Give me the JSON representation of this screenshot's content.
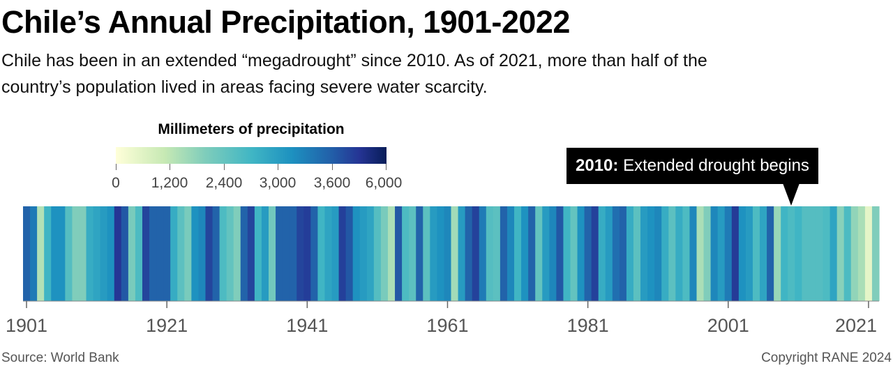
{
  "header": {
    "title": "Chile’s Annual Precipitation, 1901-2022",
    "subtitle": "Chile has been in an extended “megadrought” since 2010. As of 2021, more than half of the country’s population lived in areas facing severe water scarcity."
  },
  "legend": {
    "title": "Millimeters of precipitation",
    "scale_labels": [
      "0",
      "1,200",
      "2,400",
      "3,000",
      "3,600",
      "6,000"
    ],
    "colors": [
      "#ffffd9",
      "#c7e9b4",
      "#7fcdbb",
      "#41b6c4",
      "#1d91c0",
      "#225ea8",
      "#253494",
      "#081d58"
    ]
  },
  "annotation": {
    "year": "2010:",
    "text": "Extended drought begins"
  },
  "footer": {
    "source": "Source: World Bank",
    "copyright": "Copyright RANE 2024"
  },
  "chart_data": {
    "type": "heatmap",
    "title": "Chile’s Annual Precipitation, 1901-2022",
    "x_start": 1901,
    "x_end": 2022,
    "x_ticks": [
      "1901",
      "1921",
      "1941",
      "1961",
      "1981",
      "2001",
      "2021"
    ],
    "legend_title": "Millimeters of precipitation",
    "color_scale_breaks": [
      0,
      1200,
      2400,
      3000,
      3600,
      6000
    ],
    "values": [
      3300,
      3100,
      1100,
      2500,
      2900,
      2900,
      2300,
      1700,
      1700,
      2600,
      2700,
      2800,
      2900,
      4200,
      3400,
      1800,
      2400,
      3600,
      3300,
      3300,
      3300,
      2600,
      2200,
      1800,
      2900,
      3000,
      3600,
      3300,
      2400,
      2100,
      1700,
      3300,
      3600,
      2500,
      2800,
      1900,
      3300,
      3300,
      3300,
      3600,
      3900,
      3300,
      2500,
      2700,
      2800,
      3800,
      3400,
      2900,
      2800,
      2700,
      2300,
      1800,
      1200,
      3400,
      2400,
      2200,
      3300,
      2200,
      2800,
      2900,
      3000,
      1300,
      2800,
      3300,
      3700,
      3100,
      2300,
      2200,
      3300,
      3000,
      2500,
      2900,
      3300,
      2100,
      2800,
      3000,
      3400,
      2500,
      2100,
      2900,
      3300,
      3700,
      2600,
      2800,
      3200,
      3300,
      2600,
      2200,
      2800,
      2900,
      3000,
      2600,
      2200,
      2600,
      2400,
      3000,
      1200,
      1700,
      3000,
      2800,
      3100,
      4000,
      2900,
      2800,
      2400,
      2700,
      3300,
      1400,
      2500,
      2400,
      2500,
      2300,
      2300,
      2300,
      2400,
      2700,
      1600,
      2400,
      1500,
      1200,
      400,
      1700
    ]
  }
}
